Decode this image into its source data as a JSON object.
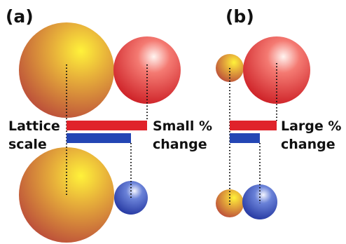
{
  "panels": [
    {
      "label": "(a)",
      "left_text": [
        "Lattice",
        "scale"
      ],
      "right_text": [
        "Small %",
        "change"
      ]
    },
    {
      "label": "(b)",
      "right_text": [
        "Large %",
        "change"
      ]
    }
  ]
}
